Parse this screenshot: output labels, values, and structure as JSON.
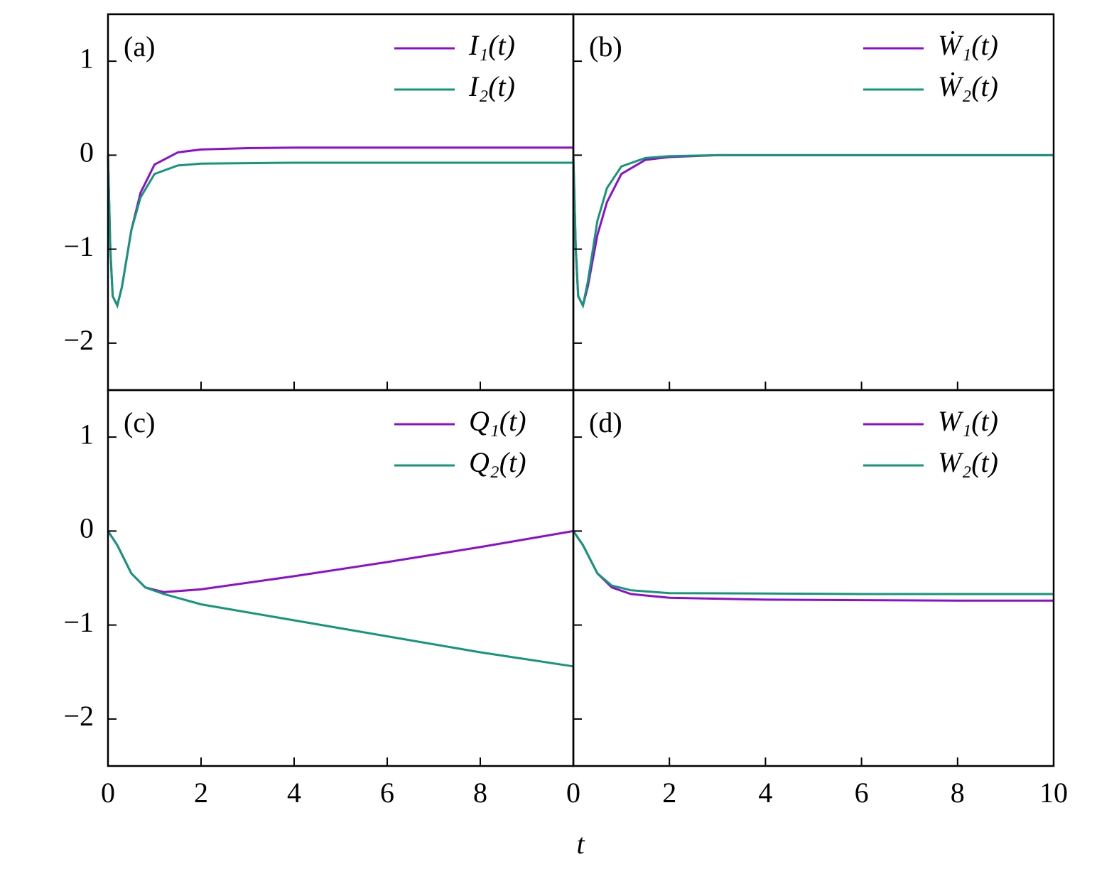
{
  "chart_data": [
    {
      "type": "line",
      "label": "(a)",
      "xlim": [
        0,
        10
      ],
      "ylim": [
        -2.5,
        1.5
      ],
      "yticks": [
        {
          "value": -2,
          "label": "−2"
        },
        {
          "value": -1,
          "label": "−1"
        },
        0,
        1
      ],
      "legend": "upper right",
      "x": [
        0,
        0.05,
        0.1,
        0.2,
        0.3,
        0.5,
        0.7,
        1,
        1.5,
        2,
        3,
        4,
        6,
        8,
        10
      ],
      "series": [
        {
          "name": "I₁(t)",
          "color": "#8b10c9",
          "values": [
            0,
            -1.0,
            -1.5,
            -1.6,
            -1.4,
            -0.8,
            -0.4,
            -0.1,
            0.03,
            0.06,
            0.075,
            0.08,
            0.08,
            0.08,
            0.08
          ]
        },
        {
          "name": "I₂(t)",
          "color": "#15967a",
          "values": [
            0,
            -1.0,
            -1.5,
            -1.6,
            -1.4,
            -0.8,
            -0.45,
            -0.2,
            -0.11,
            -0.09,
            -0.085,
            -0.08,
            -0.08,
            -0.08,
            -0.08
          ]
        }
      ]
    },
    {
      "type": "line",
      "label": "(b)",
      "xlim": [
        0,
        10
      ],
      "ylim": [
        -2.5,
        1.5
      ],
      "legend": "upper right",
      "x": [
        0,
        0.05,
        0.1,
        0.2,
        0.3,
        0.5,
        0.7,
        1,
        1.5,
        2,
        3,
        4,
        6,
        8,
        10
      ],
      "series": [
        {
          "name": "Ẇ₁(t)",
          "color": "#8b10c9",
          "values": [
            0,
            -1.0,
            -1.5,
            -1.6,
            -1.4,
            -0.85,
            -0.5,
            -0.2,
            -0.05,
            -0.02,
            0,
            0,
            0,
            0,
            0
          ]
        },
        {
          "name": "Ẇ₂(t)",
          "color": "#15967a",
          "values": [
            0,
            -1.0,
            -1.5,
            -1.6,
            -1.35,
            -0.7,
            -0.35,
            -0.12,
            -0.03,
            -0.01,
            0,
            0,
            0,
            0,
            0
          ]
        }
      ]
    },
    {
      "type": "line",
      "label": "(c)",
      "xlabel": "t",
      "xlim": [
        0,
        10
      ],
      "ylim": [
        -2.5,
        1.5
      ],
      "xticks": [
        0,
        2,
        4,
        6,
        8
      ],
      "yticks": [
        {
          "value": -2,
          "label": "−2"
        },
        {
          "value": -1,
          "label": "−1"
        },
        0,
        1
      ],
      "legend": "upper right",
      "x": [
        0,
        0.2,
        0.5,
        0.8,
        1.2,
        2,
        4,
        6,
        8,
        10
      ],
      "series": [
        {
          "name": "Q₁(t)",
          "color": "#8b10c9",
          "values": [
            0,
            -0.15,
            -0.45,
            -0.6,
            -0.65,
            -0.62,
            -0.48,
            -0.33,
            -0.17,
            0
          ]
        },
        {
          "name": "Q₂(t)",
          "color": "#15967a",
          "values": [
            0,
            -0.15,
            -0.45,
            -0.6,
            -0.67,
            -0.78,
            -0.95,
            -1.12,
            -1.29,
            -1.44
          ]
        }
      ]
    },
    {
      "type": "line",
      "label": "(d)",
      "xlim": [
        0,
        10
      ],
      "ylim": [
        -2.5,
        1.5
      ],
      "xticks": [
        0,
        2,
        4,
        6,
        8,
        10
      ],
      "legend": "upper right",
      "x": [
        0,
        0.2,
        0.5,
        0.8,
        1.2,
        2,
        4,
        6,
        8,
        10
      ],
      "series": [
        {
          "name": "W₁(t)",
          "color": "#8b10c9",
          "values": [
            0,
            -0.15,
            -0.45,
            -0.6,
            -0.67,
            -0.71,
            -0.73,
            -0.735,
            -0.74,
            -0.74
          ]
        },
        {
          "name": "W₂(t)",
          "color": "#15967a",
          "values": [
            0,
            -0.15,
            -0.45,
            -0.58,
            -0.63,
            -0.66,
            -0.665,
            -0.67,
            -0.67,
            -0.67
          ]
        }
      ]
    }
  ]
}
